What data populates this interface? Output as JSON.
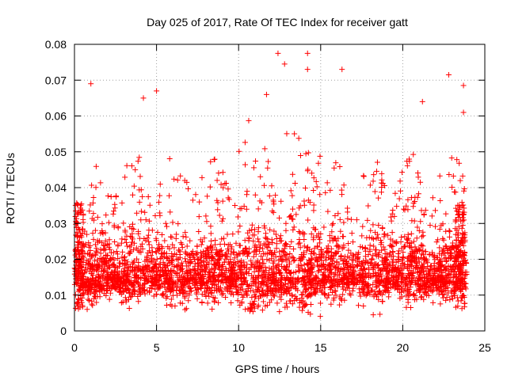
{
  "chart_data": {
    "type": "scatter",
    "title": "Day 025 of 2017, Rate Of TEC Index for receiver gatt",
    "xlabel": "GPS time / hours",
    "ylabel": "ROTI / TECUs",
    "xlim": [
      0,
      25
    ],
    "ylim": [
      0,
      0.08
    ],
    "xticks": [
      "0",
      "5",
      "10",
      "15",
      "20",
      "25"
    ],
    "yticks": [
      "0",
      "0.01",
      "0.02",
      "0.03",
      "0.04",
      "0.05",
      "0.06",
      "0.07",
      "0.08"
    ],
    "grid": true,
    "marker": "plus",
    "color": "#ff0000",
    "x_range_of_data": [
      0,
      23.9
    ],
    "notable_points": [
      {
        "x": 1.0,
        "y": 0.069
      },
      {
        "x": 4.2,
        "y": 0.065
      },
      {
        "x": 5.0,
        "y": 0.067
      },
      {
        "x": 11.7,
        "y": 0.066
      },
      {
        "x": 12.4,
        "y": 0.0775
      },
      {
        "x": 12.8,
        "y": 0.0745
      },
      {
        "x": 14.2,
        "y": 0.0775
      },
      {
        "x": 14.2,
        "y": 0.073
      },
      {
        "x": 16.3,
        "y": 0.073
      },
      {
        "x": 21.2,
        "y": 0.064
      },
      {
        "x": 22.8,
        "y": 0.0715
      },
      {
        "x": 23.7,
        "y": 0.0685
      },
      {
        "x": 23.7,
        "y": 0.061
      }
    ],
    "density_profile_note_values": {
      "typical_min": 0.005,
      "typical_max": 0.045,
      "bulk_center": 0.015
    }
  }
}
